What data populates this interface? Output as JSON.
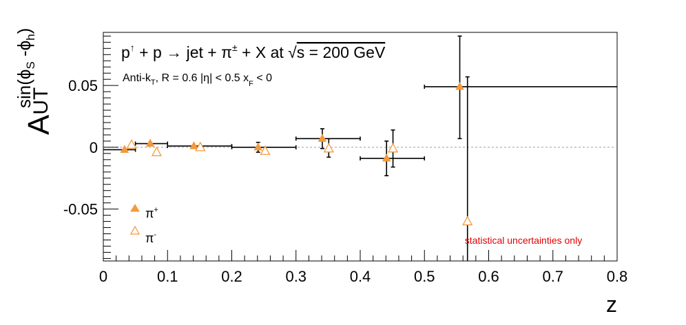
{
  "chart_data": {
    "type": "scatter",
    "title": {
      "p": "p",
      "up": "↑",
      "mid": " + p → jet + π",
      "pm": "±",
      "rest": " + X at ",
      "root": "√",
      "s": "s = 200 GeV"
    },
    "subtitle": {
      "a": "Anti-k",
      "t": "T",
      "b": ", R = 0.6   |η| < 0.5   x",
      "f": "F",
      "c": " < 0"
    },
    "xlabel": "z",
    "ylabel": {
      "main": "A",
      "sub": "UT",
      "sup": "sin(ϕ",
      "s": "S",
      "dash": " -ϕ",
      "h": "h",
      "close": ")"
    },
    "xlim": [
      0,
      0.8
    ],
    "ylim": [
      -0.092,
      0.093
    ],
    "x_ticks": [
      "0",
      "0.1",
      "0.2",
      "0.3",
      "0.4",
      "0.5",
      "0.6",
      "0.7",
      "0.8"
    ],
    "y_ticks": [
      "-0.05",
      "0",
      "0.05"
    ],
    "grid": false,
    "zero_line": true,
    "legend_position": "bottom-left",
    "annotation": "statistical uncertainties only",
    "colors": {
      "pi_plus": "#f39a3c",
      "pi_minus": "#f39a3c",
      "annotation": "#e00000",
      "axes": "#000000",
      "zero_line": "#b0b0b0"
    },
    "series": [
      {
        "name": "π",
        "sup": "+",
        "marker": "filled-triangle",
        "points": [
          {
            "x": 0.033,
            "y": -0.002,
            "ylo": -0.002,
            "yhi": -0.002,
            "xlo": 0.0,
            "xhi": 0.05
          },
          {
            "x": 0.073,
            "y": 0.003,
            "ylo": 0.003,
            "yhi": 0.003,
            "xlo": 0.05,
            "xhi": 0.1
          },
          {
            "x": 0.141,
            "y": 0.001,
            "ylo": 0.001,
            "yhi": 0.001,
            "xlo": 0.1,
            "xhi": 0.2
          },
          {
            "x": 0.241,
            "y": 0.0,
            "ylo": -0.004,
            "yhi": 0.004,
            "xlo": 0.2,
            "xhi": 0.3
          },
          {
            "x": 0.341,
            "y": 0.007,
            "ylo": -0.001,
            "yhi": 0.015,
            "xlo": 0.3,
            "xhi": 0.4
          },
          {
            "x": 0.441,
            "y": -0.009,
            "ylo": -0.023,
            "yhi": 0.005,
            "xlo": 0.4,
            "xhi": 0.5
          },
          {
            "x": 0.555,
            "y": 0.049,
            "ylo": 0.007,
            "yhi": 0.09,
            "xlo": 0.5,
            "xhi": 0.8
          }
        ]
      },
      {
        "name": "π",
        "sup": "-",
        "marker": "open-triangle",
        "points": [
          {
            "x": 0.044,
            "y": 0.002,
            "ylo": 0.002,
            "yhi": 0.002
          },
          {
            "x": 0.083,
            "y": -0.004,
            "ylo": -0.004,
            "yhi": -0.004
          },
          {
            "x": 0.151,
            "y": 0.0,
            "ylo": 0.0,
            "yhi": 0.0
          },
          {
            "x": 0.252,
            "y": -0.003,
            "ylo": -0.003,
            "yhi": -0.003
          },
          {
            "x": 0.351,
            "y": -0.001,
            "ylo": -0.008,
            "yhi": 0.007
          },
          {
            "x": 0.451,
            "y": -0.001,
            "ylo": -0.016,
            "yhi": 0.014
          },
          {
            "x": 0.567,
            "y": -0.06,
            "ylo": -0.093,
            "yhi": 0.057
          }
        ]
      }
    ]
  }
}
